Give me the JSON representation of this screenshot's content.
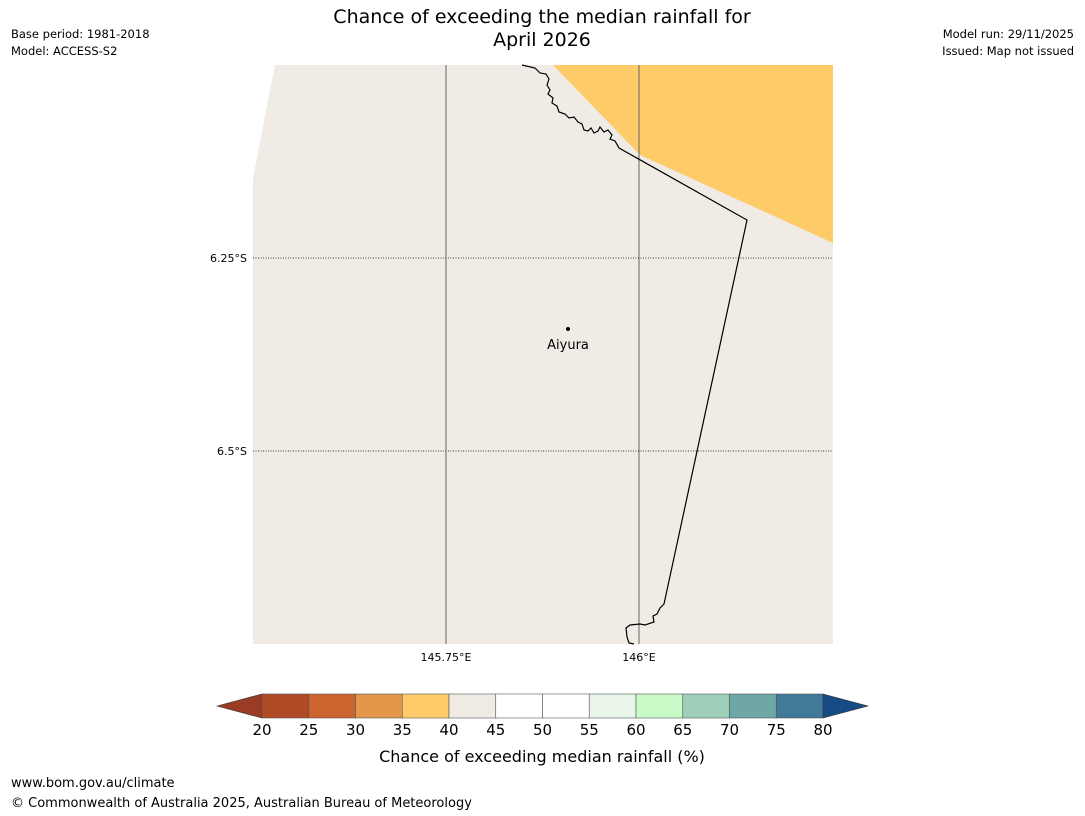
{
  "header": {
    "title_line1": "Chance of exceeding the median rainfall for",
    "title_line2": "April 2026",
    "base_period": "Base period: 1981-2018",
    "model": "Model: ACCESS-S2",
    "model_run": "Model run: 29/11/2025",
    "issued": "Issued: Map not issued"
  },
  "map": {
    "lat_labels": [
      "6.25°S",
      "6.5°S"
    ],
    "lon_labels": [
      "145.75°E",
      "146°E"
    ],
    "place": "Aiyura",
    "colors": {
      "land": "#f0ebe5",
      "band_35_40": "#fecb69",
      "border": "#000000",
      "graticule": "#666666"
    }
  },
  "legend": {
    "ticks": [
      "20",
      "25",
      "30",
      "35",
      "40",
      "45",
      "50",
      "55",
      "60",
      "65",
      "70",
      "75",
      "80"
    ],
    "label": "Chance of exceeding median rainfall (%)",
    "colors": [
      "#9a3b24",
      "#b04a24",
      "#cd6430",
      "#e4974a",
      "#fecb69",
      "#f0ebe5",
      "#ffffff",
      "#ffffff",
      "#e9f6e9",
      "#c8fbc8",
      "#9ecfb8",
      "#6fa6a6",
      "#407a98",
      "#164c86"
    ]
  },
  "footer": {
    "url": "www.bom.gov.au/climate",
    "copyright": "© Commonwealth of Australia 2025, Australian Bureau of Meteorology"
  }
}
